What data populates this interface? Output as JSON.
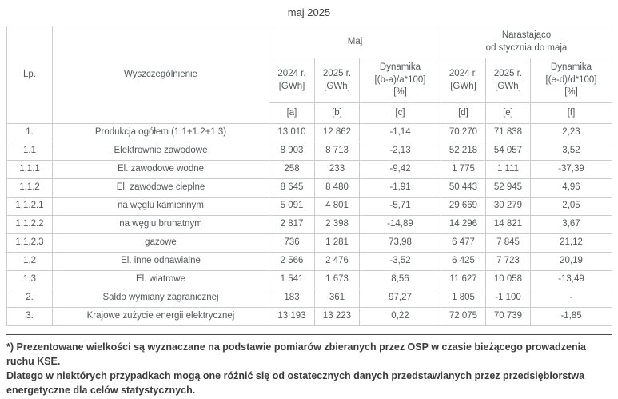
{
  "page": {
    "title": "maj 2025"
  },
  "table": {
    "header": {
      "lp": "Lp.",
      "name": "Wyszczególnienie",
      "group_maj": "Maj",
      "group_cumulative": "Narastająco\nod stycznia do maja",
      "cols": [
        "2024 r.\n[GWh]",
        "2025 r.\n[GWh]",
        "Dynamika\n[(b-a)/a*100]\n[%]",
        "2024 r.\n[GWh]",
        "2025 r.\n[GWh]",
        "Dynamika\n[(e-d)/d*100]\n[%]"
      ],
      "letters": [
        "[a]",
        "[b]",
        "[c]",
        "[d]",
        "[e]",
        "[f]"
      ]
    },
    "rows": [
      [
        "1.",
        "Produkcja ogółem (1.1+1.2+1.3)",
        "13 010",
        "12 862",
        "-1,14",
        "70 270",
        "71 838",
        "2,23"
      ],
      [
        "1.1",
        "Elektrownie zawodowe",
        "8 903",
        "8 713",
        "-2,13",
        "52 218",
        "54 057",
        "3,52"
      ],
      [
        "1.1.1",
        "El. zawodowe wodne",
        "258",
        "233",
        "-9,42",
        "1 775",
        "1 111",
        "-37,39"
      ],
      [
        "1.1.2",
        "El. zawodowe cieplne",
        "8 645",
        "8 480",
        "-1,91",
        "50 443",
        "52 945",
        "4,96"
      ],
      [
        "1.1.2.1",
        "na węglu kamiennym",
        "5 091",
        "4 801",
        "-5,71",
        "29 669",
        "30 279",
        "2,05"
      ],
      [
        "1.1.2.2",
        "na węglu brunatnym",
        "2 817",
        "2 398",
        "-14,89",
        "14 296",
        "14 821",
        "3,67"
      ],
      [
        "1.1.2.3",
        "gazowe",
        "736",
        "1 281",
        "73,98",
        "6 477",
        "7 845",
        "21,12"
      ],
      [
        "1.2",
        "El. inne odnawialne",
        "2 566",
        "2 476",
        "-3,52",
        "6 425",
        "7 723",
        "20,19"
      ],
      [
        "1.3",
        "El. wiatrowe",
        "1 541",
        "1 673",
        "8,56",
        "11 627",
        "10 058",
        "-13,49"
      ],
      [
        "2.",
        "Saldo wymiany zagranicznej",
        "183",
        "361",
        "97,27",
        "1 805",
        "-1 100",
        "-"
      ],
      [
        "3.",
        "Krajowe zużycie energii elektrycznej",
        "13 193",
        "13 223",
        "0,22",
        "72 075",
        "70 739",
        "-1,85"
      ]
    ]
  },
  "footnote": {
    "text": "*) Prezentowane wielkości są wyznaczane na podstawie pomiarów zbieranych przez OSP w czasie bieżącego prowadzenia ruchu KSE.\nDlatego w niektórych przypadkach mogą one różnić się od ostatecznych danych przedstawianych przez przedsiębiorstwa\nenergetyczne dla celów statystycznych."
  }
}
